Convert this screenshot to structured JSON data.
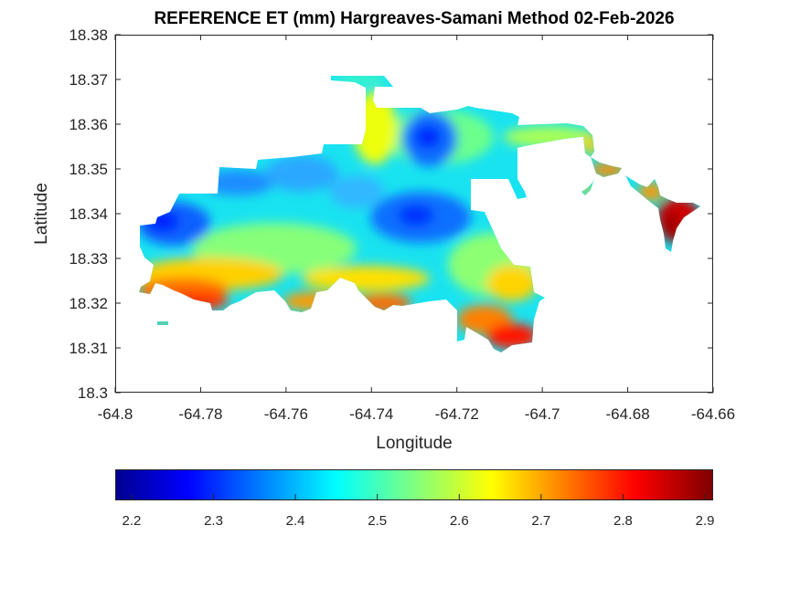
{
  "chart_data": {
    "type": "heatmap",
    "title": "REFERENCE ET (mm) Hargreaves-Samani Method  02-Feb-2026",
    "xlabel": "Longitude",
    "ylabel": "Latitude",
    "xlim": [
      -64.8,
      -64.66
    ],
    "ylim": [
      18.3,
      18.38
    ],
    "xticks": [
      -64.8,
      -64.78,
      -64.76,
      -64.74,
      -64.72,
      -64.7,
      -64.68,
      -64.66
    ],
    "xtick_labels": [
      "-64.8",
      "-64.78",
      "-64.76",
      "-64.74",
      "-64.72",
      "-64.7",
      "-64.68",
      "-64.66"
    ],
    "yticks": [
      18.3,
      18.31,
      18.32,
      18.33,
      18.34,
      18.35,
      18.36,
      18.37,
      18.38
    ],
    "ytick_labels": [
      "18.3",
      "18.31",
      "18.32",
      "18.33",
      "18.34",
      "18.35",
      "18.36",
      "18.37",
      "18.38"
    ],
    "colormap": "jet",
    "colorbar": {
      "location": "bottom",
      "range": [
        2.18,
        2.91
      ],
      "ticks": [
        2.2,
        2.3,
        2.4,
        2.5,
        2.6,
        2.7,
        2.8,
        2.9
      ],
      "tick_labels": [
        "2.2",
        "2.3",
        "2.4",
        "2.5",
        "2.6",
        "2.7",
        "2.8",
        "2.9"
      ]
    },
    "grid": false,
    "regions": [
      {
        "name": "east-end-tip",
        "lon": -64.669,
        "lat": 18.338,
        "value": 2.88
      },
      {
        "name": "south-coast-east",
        "lon": -64.708,
        "lat": 18.313,
        "value": 2.8
      },
      {
        "name": "southwest-coast",
        "lon": -64.785,
        "lat": 18.322,
        "value": 2.78
      },
      {
        "name": "central-north-low",
        "lon": -64.727,
        "lat": 18.357,
        "value": 2.24
      },
      {
        "name": "central-low",
        "lon": -64.725,
        "lat": 18.339,
        "value": 2.26
      },
      {
        "name": "west-low",
        "lon": -64.788,
        "lat": 18.338,
        "value": 2.26
      },
      {
        "name": "interior-mid",
        "lon": -64.755,
        "lat": 18.343,
        "value": 2.42
      },
      {
        "name": "north-peninsula",
        "lon": -64.74,
        "lat": 18.362,
        "value": 2.62
      },
      {
        "name": "eastern-ridge",
        "lon": -64.7,
        "lat": 18.359,
        "value": 2.55
      }
    ]
  }
}
